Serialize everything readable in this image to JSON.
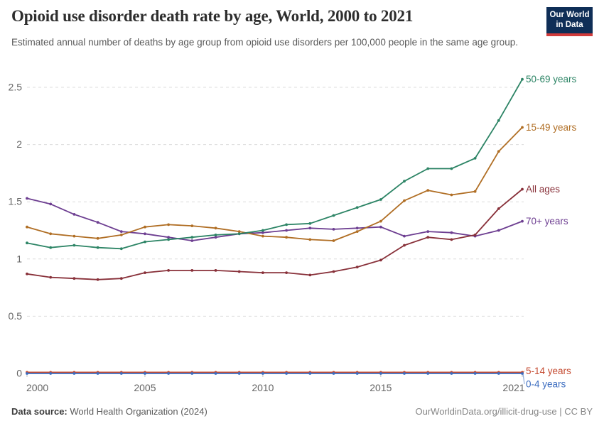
{
  "header": {
    "title": "Opioid use disorder death rate by age, World, 2000 to 2021",
    "subtitle": "Estimated annual number of deaths by age group from opioid use disorders per 100,000 people in the same age group.",
    "logo": {
      "line1": "Our World",
      "line2": "in Data",
      "bg": "#0f2e57",
      "accent": "#d13b3b"
    }
  },
  "chart_data": {
    "type": "line",
    "title": "Opioid use disorder death rate by age, World, 2000 to 2021",
    "ylabel": "",
    "xlabel": "",
    "ylim": [
      0,
      2.6
    ],
    "yticks": [
      0,
      0.5,
      1,
      1.5,
      2,
      2.5
    ],
    "xticks": [
      2000,
      2005,
      2010,
      2015,
      2021
    ],
    "grid": "horizontal-dashed",
    "legend_position": "right-end-labels",
    "x": [
      2000,
      2001,
      2002,
      2003,
      2004,
      2005,
      2006,
      2007,
      2008,
      2009,
      2010,
      2011,
      2012,
      2013,
      2014,
      2015,
      2016,
      2017,
      2018,
      2019,
      2020,
      2021
    ],
    "series": [
      {
        "name": "70+ years",
        "color": "#6D3E91",
        "label_offset": 0,
        "connector": false,
        "values": [
          1.53,
          1.48,
          1.39,
          1.32,
          1.24,
          1.22,
          1.19,
          1.16,
          1.19,
          1.22,
          1.23,
          1.25,
          1.27,
          1.26,
          1.27,
          1.28,
          1.2,
          1.24,
          1.23,
          1.2,
          1.25,
          1.33
        ]
      },
      {
        "name": "15-49 years",
        "color": "#B06E24",
        "label_offset": 0,
        "connector": false,
        "values": [
          1.28,
          1.22,
          1.2,
          1.18,
          1.21,
          1.28,
          1.3,
          1.29,
          1.27,
          1.24,
          1.2,
          1.19,
          1.17,
          1.16,
          1.24,
          1.33,
          1.51,
          1.6,
          1.56,
          1.59,
          1.94,
          2.15
        ]
      },
      {
        "name": "50-69 years",
        "color": "#2C8465",
        "label_offset": 0,
        "connector": false,
        "values": [
          1.14,
          1.1,
          1.12,
          1.1,
          1.09,
          1.15,
          1.17,
          1.19,
          1.21,
          1.22,
          1.25,
          1.3,
          1.31,
          1.38,
          1.45,
          1.52,
          1.68,
          1.79,
          1.79,
          1.88,
          2.21,
          2.57
        ]
      },
      {
        "name": "All ages",
        "color": "#883039",
        "label_offset": 0,
        "connector": false,
        "values": [
          0.87,
          0.84,
          0.83,
          0.82,
          0.83,
          0.88,
          0.9,
          0.9,
          0.9,
          0.89,
          0.88,
          0.88,
          0.86,
          0.89,
          0.93,
          0.99,
          1.12,
          1.19,
          1.17,
          1.21,
          1.44,
          1.61
        ]
      },
      {
        "name": "5-14 years",
        "color": "#C4492F",
        "label_offset": -2,
        "connector": true,
        "values": [
          0.01,
          0.01,
          0.01,
          0.01,
          0.01,
          0.01,
          0.01,
          0.01,
          0.01,
          0.01,
          0.01,
          0.01,
          0.01,
          0.01,
          0.01,
          0.01,
          0.01,
          0.01,
          0.01,
          0.01,
          0.01,
          0.01
        ]
      },
      {
        "name": "0-4 years",
        "color": "#3C6DC0",
        "label_offset": 15,
        "connector": true,
        "values": [
          0,
          0,
          0,
          0,
          0,
          0,
          0,
          0,
          0,
          0,
          0,
          0,
          0,
          0,
          0,
          0,
          0,
          0,
          0,
          0,
          0,
          0
        ]
      }
    ]
  },
  "footer": {
    "source_label": "Data source:",
    "source_value": " World Health Organization (2024)",
    "credit": "OurWorldinData.org/illicit-drug-use | CC BY"
  }
}
